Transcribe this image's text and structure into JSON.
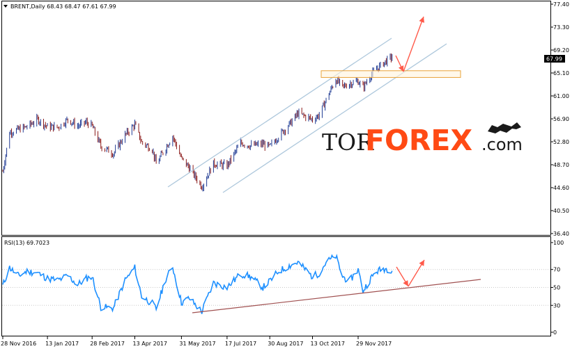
{
  "chart_data": [
    {
      "type": "candlestick",
      "header": "BRENT,Daily  68.43 68.47 67.61 67.99",
      "current_price_label": "67.99",
      "y_ticks": [
        "77.40",
        "73.30",
        "69.20",
        "65.10",
        "61.00",
        "56.90",
        "52.80",
        "48.70",
        "44.60",
        "40.50",
        "36.40"
      ],
      "ylim": [
        36.4,
        77.4
      ],
      "x_tick_labels": [
        "28 Nov 2016",
        "13 Jan 2017",
        "28 Feb 2017",
        "13 Apr 2017",
        "31 May 2017",
        "17 Jul 2017",
        "30 Aug 2017",
        "13 Oct 2017",
        "29 Nov 2017"
      ],
      "close_path": [
        [
          "28 Nov 2016",
          47.5
        ],
        [
          "5 Dec 2016",
          54.5
        ],
        [
          "14 Dec 2016",
          55.0
        ],
        [
          "23 Dec 2016",
          55.5
        ],
        [
          "3 Jan 2017",
          56.8
        ],
        [
          "13 Jan 2017",
          55.5
        ],
        [
          "24 Jan 2017",
          55.4
        ],
        [
          "3 Feb 2017",
          56.8
        ],
        [
          "13 Feb 2017",
          55.6
        ],
        [
          "22 Feb 2017",
          56.3
        ],
        [
          "28 Feb 2017",
          55.6
        ],
        [
          "9 Mar 2017",
          52.0
        ],
        [
          "22 Mar 2017",
          50.7
        ],
        [
          "3 Apr 2017",
          54.0
        ],
        [
          "13 Apr 2017",
          55.9
        ],
        [
          "20 Apr 2017",
          52.7
        ],
        [
          "1 May 2017",
          51.5
        ],
        [
          "5 May 2017",
          48.8
        ],
        [
          "15 May 2017",
          51.8
        ],
        [
          "22 May 2017",
          53.8
        ],
        [
          "31 May 2017",
          49.8
        ],
        [
          "8 Jun 2017",
          48.2
        ],
        [
          "21 Jun 2017",
          44.8
        ],
        [
          "3 Jul 2017",
          48.9
        ],
        [
          "17 Jul 2017",
          48.5
        ],
        [
          "31 Jul 2017",
          52.6
        ],
        [
          "10 Aug 2017",
          52.1
        ],
        [
          "23 Aug 2017",
          52.4
        ],
        [
          "30 Aug 2017",
          51.9
        ],
        [
          "8 Sep 2017",
          53.8
        ],
        [
          "21 Sep 2017",
          56.3
        ],
        [
          "28 Sep 2017",
          57.9
        ],
        [
          "13 Oct 2017",
          56.8
        ],
        [
          "20 Oct 2017",
          57.6
        ],
        [
          "27 Oct 2017",
          60.3
        ],
        [
          "6 Nov 2017",
          64.0
        ],
        [
          "13 Nov 2017",
          62.6
        ],
        [
          "20 Nov 2017",
          63.2
        ],
        [
          "29 Nov 2017",
          63.6
        ],
        [
          "4 Dec 2017",
          62.5
        ],
        [
          "12 Dec 2017",
          64.7
        ],
        [
          "18 Dec 2017",
          65.8
        ],
        [
          "26 Dec 2017",
          67.0
        ],
        [
          "3 Jan 2018",
          68.0
        ]
      ],
      "annotations": {
        "rising_channel": true,
        "resistance_zone": [
          64.3,
          65.5
        ],
        "forecast_arrows": [
          "down to support zone",
          "up toward 73.3"
        ]
      },
      "watermark": "TORFOREX.com",
      "colors": {
        "up_candle": "#1f3a93",
        "down_candle": "#8b1a1a",
        "channel": "#aec8dc",
        "zone": "#e9a33a",
        "arrow": "#ff5a4a"
      }
    },
    {
      "type": "line",
      "header": "RSI(13) 69.7023",
      "y_ticks": [
        "100",
        "70",
        "50",
        "30",
        "0"
      ],
      "ylim": [
        0,
        100
      ],
      "series": [
        {
          "name": "RSI(13)",
          "x": [
            "28 Nov 2016",
            "5 Dec 2016",
            "14 Dec 2016",
            "23 Dec 2016",
            "3 Jan 2017",
            "13 Jan 2017",
            "24 Jan 2017",
            "3 Feb 2017",
            "13 Feb 2017",
            "22 Feb 2017",
            "28 Feb 2017",
            "9 Mar 2017",
            "22 Mar 2017",
            "3 Apr 2017",
            "13 Apr 2017",
            "20 Apr 2017",
            "1 May 2017",
            "5 May 2017",
            "15 May 2017",
            "22 May 2017",
            "31 May 2017",
            "8 Jun 2017",
            "21 Jun 2017",
            "3 Jul 2017",
            "17 Jul 2017",
            "31 Jul 2017",
            "10 Aug 2017",
            "23 Aug 2017",
            "30 Aug 2017",
            "8 Sep 2017",
            "21 Sep 2017",
            "28 Sep 2017",
            "13 Oct 2017",
            "20 Oct 2017",
            "27 Oct 2017",
            "6 Nov 2017",
            "13 Nov 2017",
            "20 Nov 2017",
            "29 Nov 2017",
            "4 Dec 2017",
            "12 Dec 2017",
            "18 Dec 2017",
            "26 Dec 2017",
            "3 Jan 2018"
          ],
          "values": [
            52,
            72,
            63,
            68,
            66,
            60,
            58,
            63,
            53,
            60,
            62,
            28,
            27,
            58,
            72,
            40,
            32,
            26,
            60,
            73,
            33,
            38,
            23,
            55,
            50,
            65,
            62,
            50,
            57,
            68,
            75,
            78,
            62,
            66,
            78,
            85,
            62,
            57,
            70,
            46,
            60,
            68,
            71,
            69.7
          ]
        }
      ],
      "annotations": {
        "support_line": true,
        "forecast_arrows": [
          "down to trendline",
          "up"
        ]
      },
      "colors": {
        "rsi": "#1e90ff",
        "trendline": "#a05050",
        "arrow": "#ff5a4a"
      }
    }
  ]
}
